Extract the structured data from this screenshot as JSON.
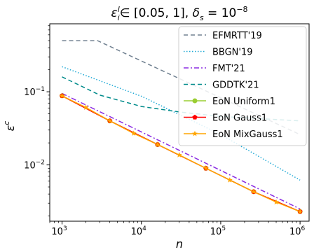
{
  "chart_data": {
    "type": "line",
    "title": "$\\varepsilon_i^l \\in [0.05, 1], \\delta_s = 10^{-8}$",
    "xlabel": "n",
    "ylabel": "ε^c",
    "x_scale": "log",
    "y_scale": "log",
    "xlim": [
      700,
      1300000
    ],
    "ylim": [
      0.0017,
      0.85
    ],
    "x_ticks": [
      {
        "value": 1000,
        "base": "10",
        "exp": "3"
      },
      {
        "value": 10000,
        "base": "10",
        "exp": "4"
      },
      {
        "value": 100000,
        "base": "10",
        "exp": "5"
      },
      {
        "value": 1000000,
        "base": "10",
        "exp": "6"
      }
    ],
    "y_ticks": [
      {
        "value": 0.01,
        "base": "10",
        "exp": "−2"
      },
      {
        "value": 0.1,
        "base": "10",
        "exp": "−1"
      }
    ],
    "legend_position": "top-right",
    "series": [
      {
        "name": "EFMRTT'19",
        "color": "#708090",
        "dash": "6,4",
        "marker": "none",
        "x": [
          1000,
          2800,
          1000000
        ],
        "y": [
          0.5,
          0.5,
          0.026
        ]
      },
      {
        "name": "BBGN'19",
        "color": "#1fa9d6",
        "dash": "1.5,2.5",
        "marker": "none",
        "x": [
          1000,
          10000,
          100000,
          1000000
        ],
        "y": [
          0.22,
          0.087,
          0.026,
          0.0062
        ]
      },
      {
        "name": "FMT'21",
        "color": "#8a2be2",
        "dash": "7,3,2,3",
        "marker": "none",
        "x": [
          1000,
          1000000
        ],
        "y": [
          0.095,
          0.0025
        ]
      },
      {
        "name": "GDDTK'21",
        "color": "#008b8b",
        "dash": "6,4",
        "marker": "none",
        "x": [
          1000,
          3000,
          10000,
          30000,
          100000,
          1000000
        ],
        "y": [
          0.16,
          0.09,
          0.063,
          0.053,
          0.046,
          0.04
        ]
      },
      {
        "name": "EoN Uniform1",
        "color": "#9acd32",
        "dash": "",
        "marker": "circle",
        "x": [
          1000,
          4000,
          16000,
          65000,
          260000,
          1000000
        ],
        "y": [
          0.088,
          0.04,
          0.019,
          0.009,
          0.0043,
          0.0023
        ]
      },
      {
        "name": "EoN Gauss1",
        "color": "#ff0000",
        "dash": "",
        "marker": "pentagon",
        "x": [
          1000,
          4000,
          16000,
          65000,
          260000,
          1000000
        ],
        "y": [
          0.088,
          0.04,
          0.019,
          0.009,
          0.0043,
          0.0023
        ]
      },
      {
        "name": "EoN MixGauss1",
        "color": "#ffa500",
        "dash": "",
        "marker": "star",
        "x": [
          1000,
          2000,
          4000,
          8000,
          16000,
          30000,
          65000,
          130000,
          260000,
          500000,
          1000000
        ],
        "y": [
          0.088,
          0.061,
          0.04,
          0.027,
          0.019,
          0.0137,
          0.009,
          0.0062,
          0.0043,
          0.0031,
          0.0023
        ]
      }
    ]
  }
}
